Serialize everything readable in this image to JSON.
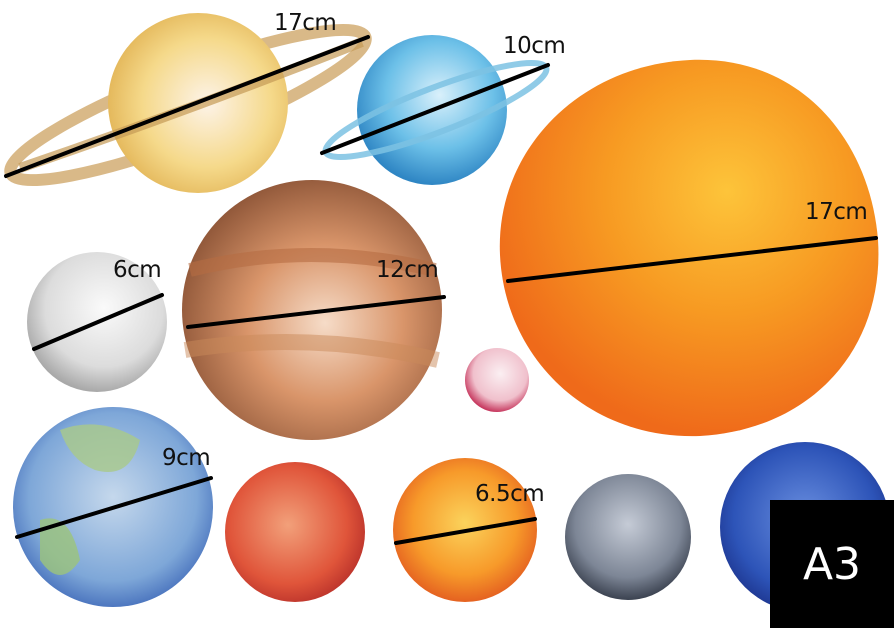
{
  "labels": {
    "saturn": "17cm",
    "uranus": "10cm",
    "sun": "17cm",
    "moon": "6cm",
    "jupiter": "12cm",
    "earth": "9cm",
    "venus": "6.5cm"
  },
  "paper_size": "A3",
  "colors": {
    "measure_line": "#000000",
    "badge_bg": "#000000",
    "badge_text": "#ffffff"
  }
}
